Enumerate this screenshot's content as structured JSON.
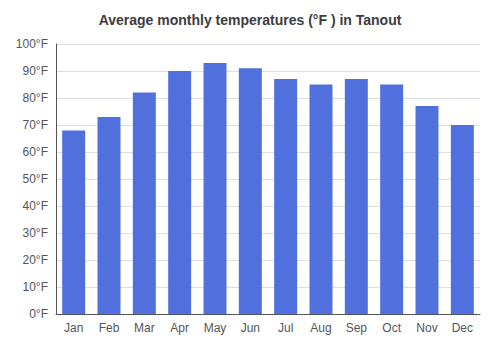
{
  "chart_data": {
    "type": "bar",
    "title": "Average monthly temperatures (°F ) in Tanout",
    "categories": [
      "Jan",
      "Feb",
      "Mar",
      "Apr",
      "May",
      "Jun",
      "Jul",
      "Aug",
      "Sep",
      "Oct",
      "Nov",
      "Dec"
    ],
    "values": [
      68,
      73,
      82,
      90,
      93,
      91,
      87,
      85,
      87,
      85,
      77,
      70
    ],
    "ylim": [
      0,
      100
    ],
    "yticks": [
      {
        "value": 0,
        "label": "0°F"
      },
      {
        "value": 10,
        "label": "10°F"
      },
      {
        "value": 20,
        "label": "20°F"
      },
      {
        "value": 30,
        "label": "30°F"
      },
      {
        "value": 40,
        "label": "40°F"
      },
      {
        "value": 50,
        "label": "50°F"
      },
      {
        "value": 60,
        "label": "60°F"
      },
      {
        "value": 70,
        "label": "70°F"
      },
      {
        "value": 80,
        "label": "80°F"
      },
      {
        "value": 90,
        "label": "90°F"
      },
      {
        "value": 100,
        "label": "100°F"
      }
    ],
    "grid": true
  }
}
